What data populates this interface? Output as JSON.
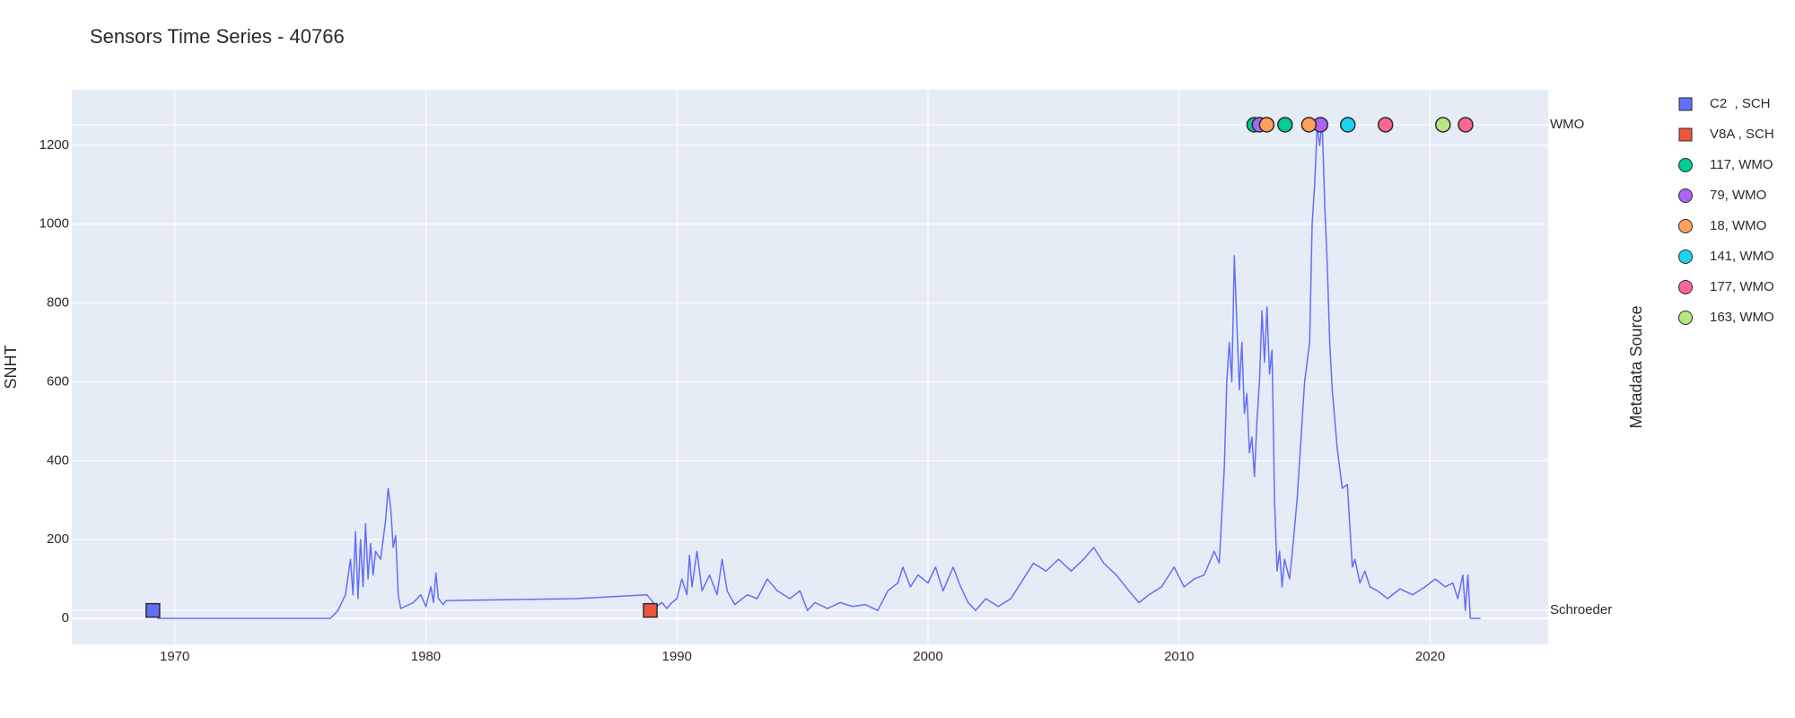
{
  "chart_data": {
    "type": "line",
    "title": "Sensors Time Series - 40766",
    "y_label": "SNHT",
    "y2_label": "Metadata Source",
    "xlim": [
      1965.9,
      2024.7
    ],
    "xticks": [
      1970,
      1980,
      1990,
      2000,
      2010,
      2020
    ],
    "ylim": [
      -66,
      1341
    ],
    "yticks": [
      0,
      200,
      400,
      600,
      800,
      1000,
      1200
    ],
    "y2categories": [
      "Schroeder",
      "WMO"
    ],
    "y2lim": [
      -0.07,
      1.072
    ],
    "grid": true,
    "legend": "right",
    "line": {
      "color": "#636efa",
      "x": [
        1969.3,
        1976.2,
        1976.5,
        1976.8,
        1977.0,
        1977.1,
        1977.2,
        1977.3,
        1977.4,
        1977.5,
        1977.6,
        1977.7,
        1977.8,
        1977.9,
        1978.0,
        1978.2,
        1978.4,
        1978.5,
        1978.6,
        1978.7,
        1978.8,
        1978.9,
        1979.0,
        1979.5,
        1979.8,
        1980.0,
        1980.2,
        1980.3,
        1980.4,
        1980.5,
        1980.7,
        1980.8,
        1986.0,
        1988.8,
        1989.0,
        1989.2,
        1989.4,
        1989.6,
        1989.8,
        1990.0,
        1990.2,
        1990.4,
        1990.5,
        1990.6,
        1990.8,
        1991.0,
        1991.3,
        1991.6,
        1991.8,
        1992.0,
        1992.3,
        1992.8,
        1993.2,
        1993.6,
        1994.0,
        1994.5,
        1994.9,
        1995.2,
        1995.5,
        1996.0,
        1996.5,
        1997.0,
        1997.5,
        1998.0,
        1998.4,
        1998.8,
        1999.0,
        1999.3,
        1999.6,
        2000.0,
        2000.3,
        2000.6,
        2001.0,
        2001.3,
        2001.6,
        2001.9,
        2002.3,
        2002.8,
        2003.3,
        2003.8,
        2004.2,
        2004.7,
        2005.2,
        2005.7,
        2006.2,
        2006.6,
        2007.0,
        2007.5,
        2008.0,
        2008.4,
        2008.8,
        2009.3,
        2009.8,
        2010.2,
        2010.6,
        2011.0,
        2011.4,
        2011.6,
        2011.8,
        2011.9,
        2012.0,
        2012.1,
        2012.2,
        2012.3,
        2012.4,
        2012.5,
        2012.6,
        2012.7,
        2012.8,
        2012.9,
        2013.0,
        2013.1,
        2013.2,
        2013.3,
        2013.4,
        2013.5,
        2013.6,
        2013.7,
        2013.8,
        2013.9,
        2014.0,
        2014.1,
        2014.2,
        2014.4,
        2014.5,
        2014.7,
        2014.9,
        2015.0,
        2015.2,
        2015.3,
        2015.4,
        2015.5,
        2015.6,
        2015.7,
        2015.8,
        2015.9,
        2016.0,
        2016.1,
        2016.3,
        2016.5,
        2016.7,
        2016.9,
        2017.0,
        2017.2,
        2017.4,
        2017.6,
        2017.9,
        2018.3,
        2018.8,
        2019.3,
        2019.8,
        2020.2,
        2020.6,
        2020.9,
        2021.1,
        2021.3,
        2021.4,
        2021.5,
        2021.6,
        2022.0
      ],
      "values": [
        0,
        0,
        20,
        60,
        150,
        60,
        220,
        50,
        200,
        80,
        240,
        100,
        190,
        110,
        170,
        150,
        250,
        330,
        280,
        180,
        210,
        60,
        25,
        40,
        60,
        30,
        80,
        40,
        115,
        50,
        35,
        45,
        50,
        60,
        45,
        30,
        40,
        25,
        40,
        50,
        100,
        60,
        160,
        80,
        170,
        70,
        110,
        60,
        150,
        70,
        35,
        60,
        50,
        100,
        70,
        50,
        70,
        20,
        40,
        25,
        40,
        30,
        35,
        20,
        70,
        90,
        130,
        80,
        110,
        90,
        130,
        70,
        130,
        80,
        40,
        20,
        50,
        30,
        50,
        100,
        140,
        120,
        150,
        120,
        150,
        180,
        140,
        110,
        70,
        40,
        60,
        80,
        130,
        80,
        100,
        110,
        170,
        140,
        380,
        600,
        700,
        600,
        920,
        750,
        580,
        700,
        520,
        570,
        420,
        460,
        360,
        500,
        600,
        780,
        650,
        790,
        620,
        680,
        300,
        120,
        170,
        80,
        150,
        100,
        160,
        300,
        500,
        600,
        700,
        1000,
        1100,
        1250,
        1200,
        1260,
        1050,
        900,
        700,
        580,
        430,
        330,
        340,
        130,
        150,
        90,
        120,
        80,
        70,
        50,
        75,
        60,
        80,
        100,
        80,
        90,
        50,
        110,
        20,
        110,
        0,
        0
      ]
    },
    "series": [
      {
        "name": "C2  , SCH",
        "color": "#636efa",
        "symbol": "square",
        "x": [
          1969.13
        ],
        "values": [
          "Schroeder"
        ]
      },
      {
        "name": "V8A , SCH",
        "color": "#EF553B",
        "symbol": "square",
        "x": [
          1988.94
        ],
        "values": [
          "Schroeder"
        ]
      },
      {
        "name": "117, WMO",
        "color": "#00cc96",
        "symbol": "circle",
        "x": [
          2012.99,
          2014.22
        ],
        "values": [
          "WMO",
          "WMO"
        ]
      },
      {
        "name": "79, WMO",
        "color": "#ab63fa",
        "symbol": "circle",
        "x": [
          2013.2,
          2015.63
        ],
        "values": [
          "WMO",
          "WMO"
        ]
      },
      {
        "name": "18, WMO",
        "color": "#FFA15A",
        "symbol": "circle",
        "x": [
          2013.49,
          2015.17
        ],
        "values": [
          "WMO",
          "WMO"
        ]
      },
      {
        "name": "141, WMO",
        "color": "#19d3f3",
        "symbol": "circle",
        "x": [
          2016.72
        ],
        "values": [
          "WMO"
        ]
      },
      {
        "name": "177, WMO",
        "color": "#FF6692",
        "symbol": "circle",
        "x": [
          2018.22,
          2021.41
        ],
        "values": [
          "WMO",
          "WMO"
        ]
      },
      {
        "name": "163, WMO",
        "color": "#B6E880",
        "symbol": "circle",
        "x": [
          2020.51
        ],
        "values": [
          "WMO"
        ]
      }
    ]
  }
}
